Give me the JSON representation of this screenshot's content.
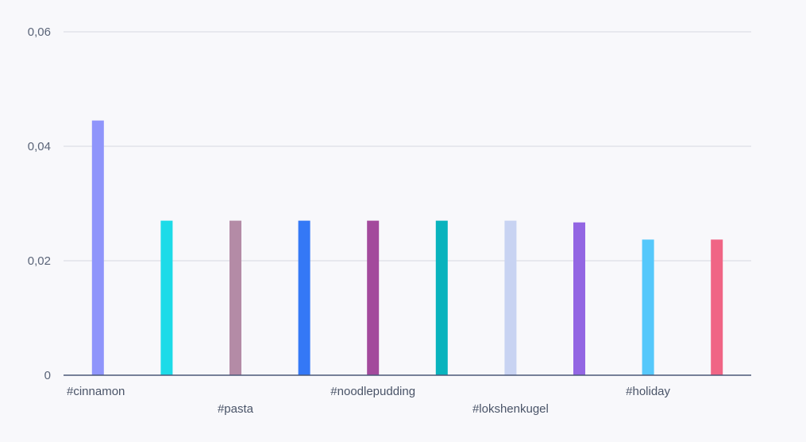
{
  "chart_data": {
    "type": "bar",
    "categories": [
      "#cinnamon",
      "",
      "#pasta",
      "",
      "#noodlepudding",
      "",
      "#lokshenkugel",
      "",
      "#holiday",
      ""
    ],
    "values": [
      0.0445,
      0.027,
      0.027,
      0.027,
      0.027,
      0.027,
      0.027,
      0.0267,
      0.0237,
      0.0237
    ],
    "colors": [
      "#8f95fb",
      "#1ddbe8",
      "#b48ba6",
      "#3478f6",
      "#a34a9c",
      "#08b3bd",
      "#c8d3f2",
      "#9366e3",
      "#56c8fb",
      "#f06585"
    ],
    "ylim": [
      0,
      0.06
    ],
    "yticks": [
      0,
      0.02,
      0.04,
      0.06
    ],
    "ytick_labels": [
      "0",
      "0,02",
      "0,04",
      "0,06"
    ],
    "grid": true,
    "title": "",
    "xlabel": "",
    "ylabel": ""
  }
}
